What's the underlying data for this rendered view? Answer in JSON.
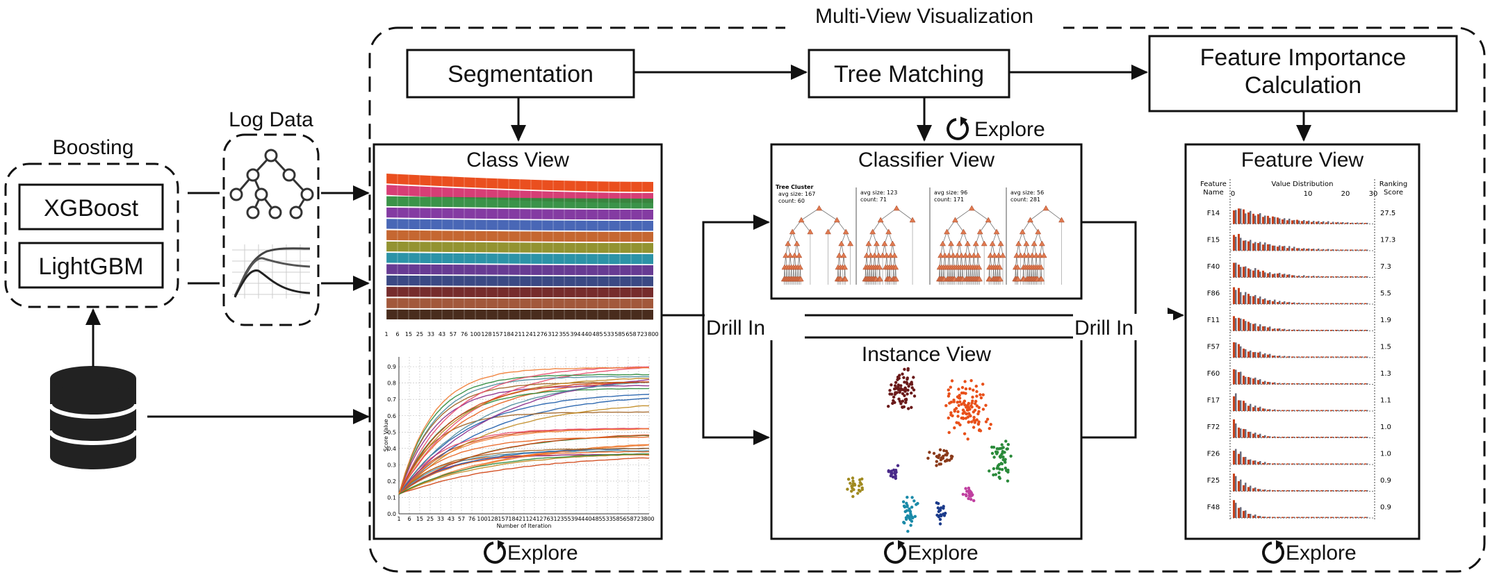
{
  "title": "Multi-View Visualization",
  "boosting": {
    "label": "Boosting",
    "items": [
      "XGBoost",
      "LightGBM"
    ]
  },
  "log_data": {
    "label": "Log Data"
  },
  "steps": {
    "segmentation": "Segmentation",
    "tree_matching": "Tree Matching",
    "feature_importance_line1": "Feature Importance",
    "feature_importance_line2": "Calculation"
  },
  "views": {
    "class": "Class View",
    "classifier": "Classifier View",
    "instance": "Instance View",
    "feature": "Feature View"
  },
  "actions": {
    "explore": "Explore",
    "drill_in": "Drill In"
  },
  "class_view": {
    "x_ticks": [
      "1",
      "6",
      "15",
      "25",
      "33",
      "43",
      "57",
      "76",
      "100",
      "128",
      "157",
      "184",
      "211",
      "241",
      "276",
      "312",
      "355",
      "394",
      "440",
      "485",
      "533",
      "585",
      "658",
      "723",
      "800"
    ],
    "line_y_ticks": [
      "0.0",
      "0.1",
      "0.2",
      "0.3",
      "0.4",
      "0.5",
      "0.6",
      "0.7",
      "0.8",
      "0.9"
    ],
    "line_ylabel": "Score Value",
    "line_xlabel": "Number of Iteration",
    "stream_colors": [
      "#e8400c",
      "#d42e6a",
      "#2a8a3a",
      "#7a2a9a",
      "#3a5ab0",
      "#c05a20",
      "#8a8a20",
      "#1a8aa0",
      "#5a2a8a",
      "#2a3a7a",
      "#6a1a1a",
      "#9a4a2a",
      "#3a1a0a"
    ],
    "line_colors": [
      "#e8601c",
      "#d04010",
      "#f07a30",
      "#2a8a3a",
      "#1a5aa8",
      "#8a2a8a",
      "#a06020",
      "#e84a6a",
      "#4a8a9a",
      "#c08a20"
    ]
  },
  "classifier_view": {
    "clusters": [
      {
        "title": "Tree Cluster",
        "size": "avg size: 167",
        "count": "count: 60"
      },
      {
        "title": "",
        "size": "avg size: 123",
        "count": "count: 71"
      },
      {
        "title": "",
        "size": "avg size: 96",
        "count": "count: 171"
      },
      {
        "title": "",
        "size": "avg size: 56",
        "count": "count: 281"
      }
    ]
  },
  "instance_view": {
    "clusters": [
      {
        "color": "#6a1a1a",
        "count": 70
      },
      {
        "color": "#e8501a",
        "count": 110
      },
      {
        "color": "#2a8a3a",
        "count": 50
      },
      {
        "color": "#a08a20",
        "count": 25
      },
      {
        "color": "#4a2a8a",
        "count": 18
      },
      {
        "color": "#1a8aa8",
        "count": 35
      },
      {
        "color": "#c040a0",
        "count": 20
      },
      {
        "color": "#1a3a8a",
        "count": 20
      },
      {
        "color": "#8a3a1a",
        "count": 30
      }
    ]
  },
  "feature_view": {
    "header_feature_line1": "Feature",
    "header_feature_line2": "Name",
    "header_dist": "Value Distribution",
    "header_rank_line1": "Ranking",
    "header_rank_line2": "Score",
    "axis_ticks": [
      "0",
      "10",
      "20",
      "30"
    ],
    "rows": [
      {
        "name": "F14",
        "score": "27.5"
      },
      {
        "name": "F15",
        "score": "17.3"
      },
      {
        "name": "F40",
        "score": "7.3"
      },
      {
        "name": "F86",
        "score": "5.5"
      },
      {
        "name": "F11",
        "score": "1.9"
      },
      {
        "name": "F57",
        "score": "1.5"
      },
      {
        "name": "F60",
        "score": "1.3"
      },
      {
        "name": "F17",
        "score": "1.1"
      },
      {
        "name": "F72",
        "score": "1.0"
      },
      {
        "name": "F26",
        "score": "1.0"
      },
      {
        "name": "F25",
        "score": "0.9"
      },
      {
        "name": "F48",
        "score": "0.9"
      }
    ],
    "bar_colors": [
      "#c8401a",
      "#6a6a7a"
    ]
  }
}
